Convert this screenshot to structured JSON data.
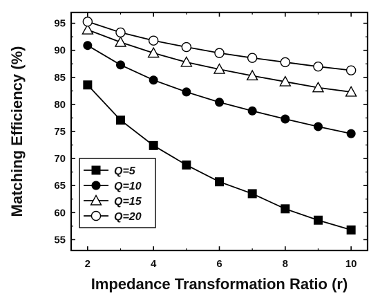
{
  "chart_data": {
    "type": "line",
    "title": "",
    "xlabel": "Impedance Transformation Ratio (r)",
    "ylabel": "Matching Efficiency (%)",
    "xlim": [
      1.5,
      10.5
    ],
    "ylim": [
      53,
      97
    ],
    "x_ticks": [
      2,
      4,
      6,
      8,
      10
    ],
    "y_ticks": [
      55,
      60,
      65,
      70,
      75,
      80,
      85,
      90,
      95
    ],
    "grid": false,
    "legend_position": "bottom-left",
    "x": [
      2,
      3,
      4,
      5,
      6,
      7,
      8,
      9,
      10
    ],
    "series": [
      {
        "name": "Q=5",
        "marker": "filled-square",
        "values": [
          83.6,
          77.1,
          72.4,
          68.8,
          65.7,
          63.5,
          60.7,
          58.6,
          56.8
        ]
      },
      {
        "name": "Q=10",
        "marker": "filled-circle",
        "values": [
          90.9,
          87.3,
          84.5,
          82.3,
          80.4,
          78.8,
          77.3,
          75.9,
          74.6
        ]
      },
      {
        "name": "Q=15",
        "marker": "open-triangle",
        "values": [
          93.8,
          91.5,
          89.5,
          87.8,
          86.5,
          85.3,
          84.2,
          83.1,
          82.3
        ]
      },
      {
        "name": "Q=20",
        "marker": "open-circle",
        "values": [
          95.3,
          93.3,
          91.8,
          90.6,
          89.5,
          88.6,
          87.8,
          87.0,
          86.3
        ]
      }
    ],
    "colors": {
      "line": "#000000",
      "fill": "#000000",
      "hollow": "#ffffff"
    }
  }
}
